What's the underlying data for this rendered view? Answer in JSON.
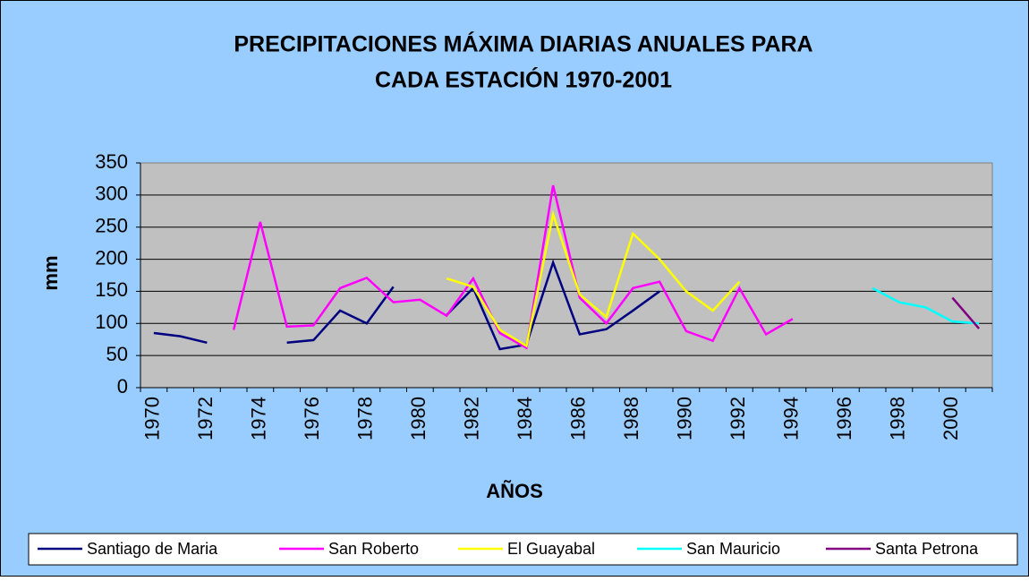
{
  "chart_data": {
    "type": "line",
    "title": [
      "PRECIPITACIONES MÁXIMA DIARIAS ANUALES PARA",
      "CADA ESTACIÓN 1970-2001"
    ],
    "y_label": "mm",
    "x_label": "AÑOS",
    "categories": [
      "1970",
      null,
      "1972",
      null,
      "1974",
      null,
      "1976",
      null,
      "1978",
      null,
      "1980",
      null,
      "1982",
      null,
      "1984",
      null,
      "1986",
      null,
      "1988",
      null,
      "1990",
      null,
      "1992",
      null,
      "1994",
      null,
      "1996",
      null,
      "1998",
      null,
      "2000",
      null
    ],
    "series": [
      {
        "name": "Santiago de Maria",
        "color": "#000080",
        "values": [
          85,
          80,
          70,
          null,
          null,
          70,
          74,
          120,
          100,
          157,
          null,
          113,
          155,
          60,
          67,
          195,
          83,
          91,
          120,
          150,
          null,
          null,
          null,
          null,
          null,
          null,
          null,
          null,
          null,
          null,
          null,
          null
        ]
      },
      {
        "name": "San Roberto",
        "color": "#FF00FF",
        "values": [
          null,
          null,
          null,
          90,
          258,
          95,
          97,
          155,
          171,
          133,
          137,
          112,
          170,
          85,
          62,
          315,
          140,
          100,
          155,
          165,
          88,
          73,
          155,
          83,
          107,
          null,
          null,
          null,
          null,
          null,
          null,
          null
        ]
      },
      {
        "name": "El Guayabal",
        "color": "#FFFF00",
        "values": [
          null,
          null,
          null,
          null,
          null,
          null,
          null,
          null,
          null,
          null,
          null,
          170,
          157,
          90,
          65,
          270,
          145,
          110,
          240,
          200,
          150,
          120,
          165,
          null,
          null,
          null,
          null,
          null,
          null,
          null,
          null,
          null
        ]
      },
      {
        "name": "San Mauricio",
        "color": "#00FFFF",
        "values": [
          null,
          null,
          null,
          null,
          null,
          null,
          null,
          null,
          null,
          null,
          null,
          null,
          null,
          null,
          null,
          null,
          null,
          null,
          null,
          null,
          null,
          null,
          null,
          null,
          null,
          null,
          null,
          155,
          133,
          125,
          103,
          100
        ]
      },
      {
        "name": "Santa Petrona",
        "color": "#800080",
        "values": [
          null,
          null,
          null,
          null,
          null,
          null,
          null,
          null,
          null,
          null,
          null,
          null,
          null,
          null,
          null,
          null,
          null,
          null,
          null,
          null,
          null,
          null,
          null,
          null,
          null,
          null,
          null,
          null,
          null,
          null,
          140,
          92
        ]
      }
    ],
    "ylim": [
      0,
      350
    ],
    "yticks": [
      0,
      50,
      100,
      150,
      200,
      250,
      300,
      350
    ],
    "grid": true,
    "legend": "bottom"
  }
}
